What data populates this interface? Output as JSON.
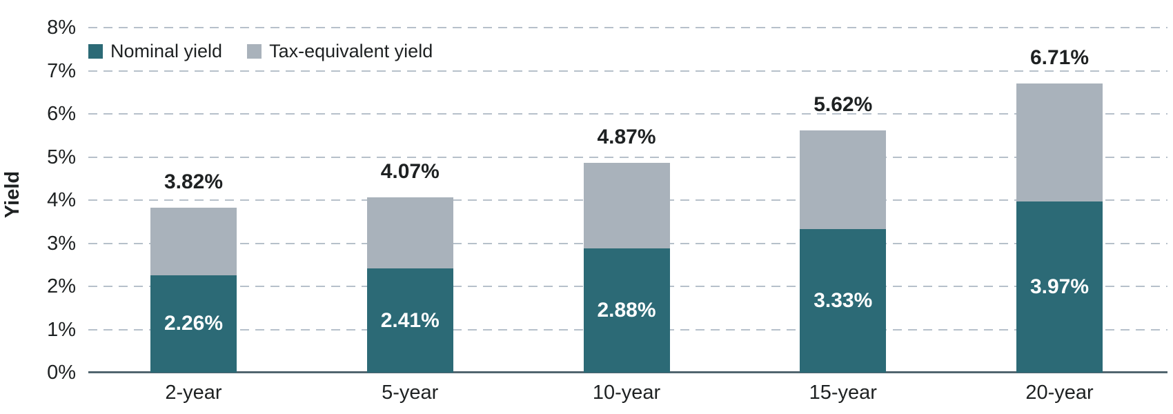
{
  "chart_data": {
    "type": "bar",
    "variant": "stacked",
    "categories": [
      "2-year",
      "5-year",
      "10-year",
      "15-year",
      "20-year"
    ],
    "series": [
      {
        "name": "Nominal yield",
        "color": "#2c6a76",
        "values": [
          2.26,
          2.41,
          2.88,
          3.33,
          3.97
        ],
        "labels": [
          "2.26%",
          "2.41%",
          "2.88%",
          "3.33%",
          "3.97%"
        ],
        "label_placement": "inside-centered-white"
      },
      {
        "name": "Tax-equivalent yield",
        "color": "#a9b2bb",
        "values": [
          3.82,
          4.07,
          4.87,
          5.62,
          6.71
        ],
        "labels": [
          "3.82%",
          "4.07%",
          "4.87%",
          "5.62%",
          "6.71%"
        ],
        "label_placement": "above-bar-black",
        "note": "values are stack totals; gray segment height = total minus nominal"
      }
    ],
    "xlabel": "",
    "ylabel": "Yield",
    "ylim": [
      0,
      8
    ],
    "yticks": [
      {
        "value": 0,
        "label": "0%"
      },
      {
        "value": 1,
        "label": "1%"
      },
      {
        "value": 2,
        "label": "2%"
      },
      {
        "value": 3,
        "label": "3%"
      },
      {
        "value": 4,
        "label": "4%"
      },
      {
        "value": 5,
        "label": "5%"
      },
      {
        "value": 6,
        "label": "6%"
      },
      {
        "value": 7,
        "label": "7%"
      },
      {
        "value": 8,
        "label": "8%"
      }
    ],
    "grid": "horizontal-dashed",
    "legend_position": "top-left",
    "colors": {
      "gridline": "#b6c0ca",
      "axis_line": "#51656f",
      "text": "#1e2122",
      "background": "#ffffff"
    }
  }
}
